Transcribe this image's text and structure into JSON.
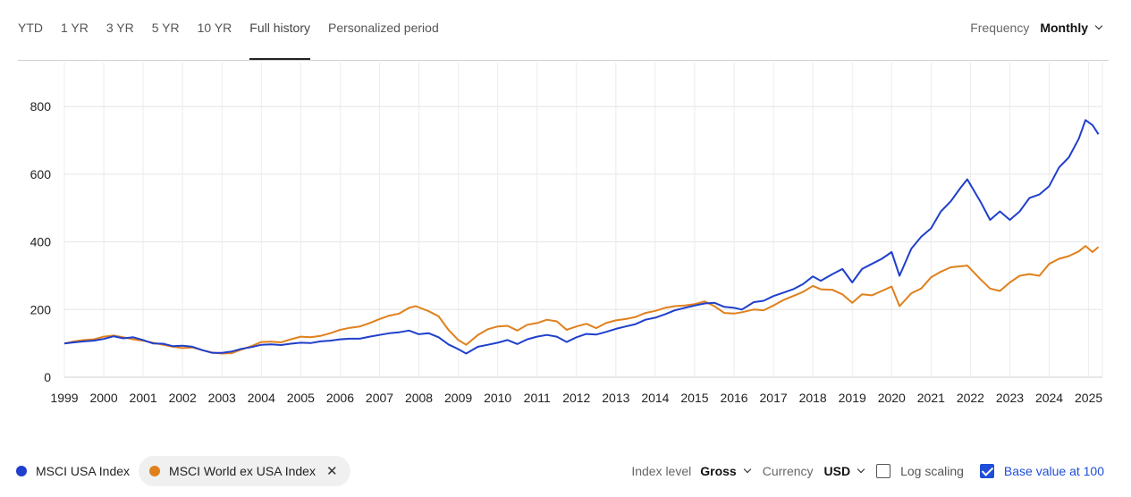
{
  "period_tabs": [
    {
      "label": "YTD",
      "active": false
    },
    {
      "label": "1 YR",
      "active": false
    },
    {
      "label": "3 YR",
      "active": false
    },
    {
      "label": "5 YR",
      "active": false
    },
    {
      "label": "10 YR",
      "active": false
    },
    {
      "label": "Full history",
      "active": true
    },
    {
      "label": "Personalized period",
      "active": false
    }
  ],
  "frequency": {
    "label": "Frequency",
    "value": "Monthly"
  },
  "legend": {
    "series_1": {
      "label": "MSCI USA Index",
      "color": "#1f3fcc"
    },
    "series_2": {
      "label": "MSCI World ex USA Index",
      "color": "#e0801c",
      "remove_icon": "close-icon"
    }
  },
  "controls": {
    "index_level_label": "Index level",
    "index_level_value": "Gross",
    "currency_label": "Currency",
    "currency_value": "USD",
    "log_scaling_label": "Log scaling",
    "log_scaling_checked": false,
    "base_value_label": "Base value at 100",
    "base_value_checked": true
  },
  "chart_data": {
    "type": "line",
    "x_ticks": [
      "1999",
      "2000",
      "2001",
      "2002",
      "2003",
      "2004",
      "2005",
      "2006",
      "2007",
      "2008",
      "2009",
      "2010",
      "2011",
      "2012",
      "2013",
      "2014",
      "2015",
      "2016",
      "2017",
      "2018",
      "2019",
      "2020",
      "2021",
      "2022",
      "2023",
      "2024",
      "2025"
    ],
    "y_ticks": [
      0,
      200,
      400,
      600,
      800
    ],
    "ylim": [
      0,
      930
    ],
    "xlim": [
      1999.0,
      2025.35
    ],
    "grid": true,
    "legend_position": "bottom-left",
    "series": [
      {
        "name": "MSCI USA Index",
        "color": "#1f3fcc",
        "points": [
          [
            1999.0,
            100
          ],
          [
            1999.25,
            103
          ],
          [
            1999.5,
            106
          ],
          [
            1999.75,
            108
          ],
          [
            2000.0,
            113
          ],
          [
            2000.25,
            121
          ],
          [
            2000.5,
            115
          ],
          [
            2000.75,
            118
          ],
          [
            2001.0,
            110
          ],
          [
            2001.25,
            100
          ],
          [
            2001.5,
            99
          ],
          [
            2001.75,
            92
          ],
          [
            2002.0,
            93
          ],
          [
            2002.25,
            90
          ],
          [
            2002.5,
            80
          ],
          [
            2002.75,
            72
          ],
          [
            2003.0,
            72
          ],
          [
            2003.25,
            76
          ],
          [
            2003.5,
            84
          ],
          [
            2003.75,
            89
          ],
          [
            2004.0,
            96
          ],
          [
            2004.25,
            97
          ],
          [
            2004.5,
            95
          ],
          [
            2004.75,
            99
          ],
          [
            2005.0,
            102
          ],
          [
            2005.25,
            101
          ],
          [
            2005.5,
            106
          ],
          [
            2005.75,
            108
          ],
          [
            2006.0,
            112
          ],
          [
            2006.25,
            114
          ],
          [
            2006.5,
            114
          ],
          [
            2006.75,
            120
          ],
          [
            2007.0,
            125
          ],
          [
            2007.25,
            130
          ],
          [
            2007.5,
            133
          ],
          [
            2007.75,
            138
          ],
          [
            2008.0,
            127
          ],
          [
            2008.25,
            130
          ],
          [
            2008.5,
            118
          ],
          [
            2008.75,
            97
          ],
          [
            2009.0,
            83
          ],
          [
            2009.2,
            70
          ],
          [
            2009.5,
            90
          ],
          [
            2009.75,
            96
          ],
          [
            2010.0,
            102
          ],
          [
            2010.25,
            110
          ],
          [
            2010.5,
            98
          ],
          [
            2010.75,
            112
          ],
          [
            2011.0,
            120
          ],
          [
            2011.25,
            125
          ],
          [
            2011.5,
            120
          ],
          [
            2011.75,
            104
          ],
          [
            2012.0,
            118
          ],
          [
            2012.25,
            128
          ],
          [
            2012.5,
            126
          ],
          [
            2012.75,
            134
          ],
          [
            2013.0,
            143
          ],
          [
            2013.25,
            150
          ],
          [
            2013.5,
            157
          ],
          [
            2013.75,
            170
          ],
          [
            2014.0,
            176
          ],
          [
            2014.25,
            186
          ],
          [
            2014.5,
            198
          ],
          [
            2014.75,
            205
          ],
          [
            2015.0,
            212
          ],
          [
            2015.25,
            218
          ],
          [
            2015.5,
            220
          ],
          [
            2015.75,
            208
          ],
          [
            2016.0,
            205
          ],
          [
            2016.2,
            200
          ],
          [
            2016.5,
            222
          ],
          [
            2016.75,
            226
          ],
          [
            2017.0,
            240
          ],
          [
            2017.25,
            250
          ],
          [
            2017.5,
            260
          ],
          [
            2017.75,
            275
          ],
          [
            2018.0,
            298
          ],
          [
            2018.2,
            285
          ],
          [
            2018.5,
            305
          ],
          [
            2018.75,
            320
          ],
          [
            2019.0,
            280
          ],
          [
            2019.25,
            320
          ],
          [
            2019.5,
            335
          ],
          [
            2019.75,
            350
          ],
          [
            2020.0,
            370
          ],
          [
            2020.2,
            300
          ],
          [
            2020.5,
            380
          ],
          [
            2020.75,
            415
          ],
          [
            2021.0,
            440
          ],
          [
            2021.25,
            490
          ],
          [
            2021.5,
            520
          ],
          [
            2021.75,
            560
          ],
          [
            2021.92,
            585
          ],
          [
            2022.25,
            520
          ],
          [
            2022.5,
            465
          ],
          [
            2022.75,
            490
          ],
          [
            2023.0,
            465
          ],
          [
            2023.25,
            490
          ],
          [
            2023.5,
            530
          ],
          [
            2023.75,
            540
          ],
          [
            2024.0,
            565
          ],
          [
            2024.25,
            620
          ],
          [
            2024.5,
            650
          ],
          [
            2024.75,
            705
          ],
          [
            2024.92,
            760
          ],
          [
            2025.1,
            745
          ],
          [
            2025.25,
            718
          ]
        ]
      },
      {
        "name": "MSCI World ex USA Index",
        "color": "#e0801c",
        "points": [
          [
            1999.0,
            100
          ],
          [
            1999.25,
            106
          ],
          [
            1999.5,
            110
          ],
          [
            1999.75,
            112
          ],
          [
            2000.0,
            120
          ],
          [
            2000.25,
            123
          ],
          [
            2000.5,
            118
          ],
          [
            2000.75,
            112
          ],
          [
            2001.0,
            108
          ],
          [
            2001.25,
            102
          ],
          [
            2001.5,
            96
          ],
          [
            2001.75,
            90
          ],
          [
            2002.0,
            86
          ],
          [
            2002.25,
            88
          ],
          [
            2002.5,
            80
          ],
          [
            2002.75,
            73
          ],
          [
            2003.0,
            70
          ],
          [
            2003.25,
            71
          ],
          [
            2003.5,
            82
          ],
          [
            2003.75,
            92
          ],
          [
            2004.0,
            104
          ],
          [
            2004.25,
            105
          ],
          [
            2004.5,
            103
          ],
          [
            2004.75,
            112
          ],
          [
            2005.0,
            120
          ],
          [
            2005.25,
            118
          ],
          [
            2005.5,
            122
          ],
          [
            2005.75,
            130
          ],
          [
            2006.0,
            140
          ],
          [
            2006.25,
            146
          ],
          [
            2006.5,
            150
          ],
          [
            2006.75,
            160
          ],
          [
            2007.0,
            172
          ],
          [
            2007.25,
            182
          ],
          [
            2007.5,
            188
          ],
          [
            2007.75,
            205
          ],
          [
            2007.92,
            210
          ],
          [
            2008.25,
            195
          ],
          [
            2008.5,
            180
          ],
          [
            2008.75,
            140
          ],
          [
            2009.0,
            110
          ],
          [
            2009.2,
            96
          ],
          [
            2009.5,
            125
          ],
          [
            2009.75,
            142
          ],
          [
            2010.0,
            150
          ],
          [
            2010.25,
            152
          ],
          [
            2010.5,
            138
          ],
          [
            2010.75,
            155
          ],
          [
            2011.0,
            160
          ],
          [
            2011.25,
            170
          ],
          [
            2011.5,
            165
          ],
          [
            2011.75,
            140
          ],
          [
            2012.0,
            150
          ],
          [
            2012.25,
            158
          ],
          [
            2012.5,
            145
          ],
          [
            2012.75,
            160
          ],
          [
            2013.0,
            168
          ],
          [
            2013.25,
            172
          ],
          [
            2013.5,
            178
          ],
          [
            2013.75,
            190
          ],
          [
            2014.0,
            196
          ],
          [
            2014.25,
            205
          ],
          [
            2014.5,
            210
          ],
          [
            2014.75,
            212
          ],
          [
            2015.0,
            216
          ],
          [
            2015.25,
            224
          ],
          [
            2015.5,
            210
          ],
          [
            2015.75,
            190
          ],
          [
            2016.0,
            188
          ],
          [
            2016.2,
            192
          ],
          [
            2016.5,
            200
          ],
          [
            2016.75,
            198
          ],
          [
            2017.0,
            212
          ],
          [
            2017.25,
            228
          ],
          [
            2017.5,
            240
          ],
          [
            2017.75,
            252
          ],
          [
            2018.0,
            270
          ],
          [
            2018.2,
            260
          ],
          [
            2018.5,
            258
          ],
          [
            2018.75,
            245
          ],
          [
            2019.0,
            220
          ],
          [
            2019.25,
            245
          ],
          [
            2019.5,
            242
          ],
          [
            2019.75,
            255
          ],
          [
            2020.0,
            268
          ],
          [
            2020.2,
            210
          ],
          [
            2020.5,
            248
          ],
          [
            2020.75,
            262
          ],
          [
            2021.0,
            295
          ],
          [
            2021.25,
            312
          ],
          [
            2021.5,
            325
          ],
          [
            2021.75,
            328
          ],
          [
            2021.92,
            330
          ],
          [
            2022.25,
            290
          ],
          [
            2022.5,
            262
          ],
          [
            2022.75,
            255
          ],
          [
            2023.0,
            280
          ],
          [
            2023.25,
            300
          ],
          [
            2023.5,
            305
          ],
          [
            2023.75,
            300
          ],
          [
            2024.0,
            335
          ],
          [
            2024.25,
            350
          ],
          [
            2024.5,
            358
          ],
          [
            2024.75,
            372
          ],
          [
            2024.92,
            388
          ],
          [
            2025.1,
            370
          ],
          [
            2025.25,
            385
          ]
        ]
      }
    ]
  }
}
